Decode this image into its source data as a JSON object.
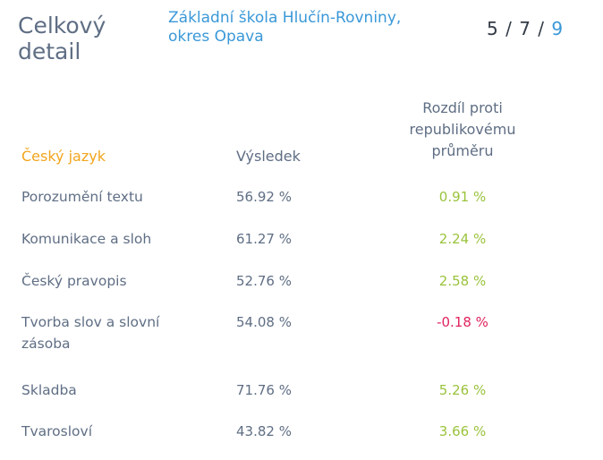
{
  "header": {
    "title": "Celkový detail",
    "school": "Základní škola Hlučín-Rovniny, okres Opava",
    "pager": {
      "a": "5",
      "b": "7",
      "total": "9"
    }
  },
  "columns": {
    "subject": "Český jazyk",
    "result": "Výsledek",
    "diff": "Rozdíl proti republikovému průměru"
  },
  "rows": [
    {
      "name": "Porozumění textu",
      "result": "56.92 %",
      "diff": "0.91 %"
    },
    {
      "name": "Komunikace a sloh",
      "result": "61.27 %",
      "diff": "2.24 %"
    },
    {
      "name": "Český pravopis",
      "result": "52.76 %",
      "diff": "2.58 %"
    },
    {
      "name": "Tvorba slov a slovní zásoba",
      "result": "54.08 %",
      "diff": "-0.18 %"
    },
    {
      "name": "Skladba",
      "result": "71.76 %",
      "diff": "5.26 %"
    },
    {
      "name": "Tvarosloví",
      "result": "43.82 %",
      "diff": "3.66 %"
    }
  ],
  "colors": {
    "positive": "#9ac33c",
    "negative": "#e0245e",
    "accent": "#3a98d8",
    "subject": "#f2a51e"
  }
}
